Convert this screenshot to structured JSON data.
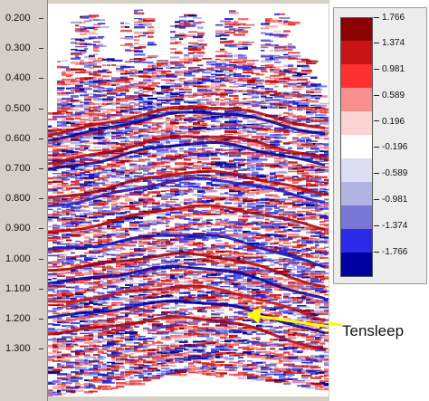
{
  "axis": {
    "ticks": [
      "0.200",
      "0.300",
      "0.400",
      "0.500",
      "0.600",
      "0.700",
      "0.800",
      "0.900",
      "1.000",
      "1.100",
      "1.200",
      "1.300"
    ]
  },
  "legend": {
    "labels": [
      "1.766",
      "1.374",
      "0.981",
      "0.589",
      "0.196",
      "-0.196",
      "-0.589",
      "-0.981",
      "-1.374",
      "-1.766"
    ],
    "colors": [
      "#8b0000",
      "#c81414",
      "#ff3030",
      "#f78f8f",
      "#fbd3d3",
      "#ffffff",
      "#dcdcf2",
      "#b3b3e3",
      "#7878d4",
      "#2b2be8",
      "#0000a0"
    ]
  },
  "annotation": {
    "label": "Tensleep",
    "arrow_color": "#ffff00"
  }
}
